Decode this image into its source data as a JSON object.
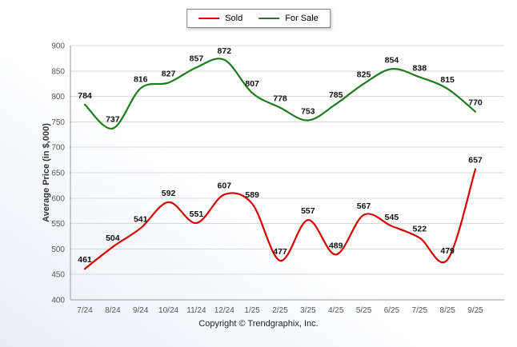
{
  "chart_data": {
    "type": "line",
    "title": "",
    "categories": [
      "7/24",
      "8/24",
      "9/24",
      "10/24",
      "11/24",
      "12/24",
      "1/25",
      "2/25",
      "3/25",
      "4/25",
      "5/25",
      "6/25",
      "7/25",
      "8/25",
      "9/25"
    ],
    "series": [
      {
        "name": "Sold",
        "color": "#d40000",
        "values": [
          461,
          504,
          541,
          592,
          551,
          607,
          589,
          477,
          557,
          489,
          567,
          545,
          522,
          479,
          657
        ]
      },
      {
        "name": "For Sale",
        "color": "#1e7b1e",
        "values": [
          784,
          737,
          816,
          827,
          857,
          872,
          807,
          778,
          753,
          785,
          825,
          854,
          838,
          815,
          770
        ]
      }
    ],
    "xlabel": "",
    "ylabel": "Average Price (in $,000)",
    "ylim": [
      400,
      900
    ],
    "ytick_step": 50,
    "grid": true,
    "legend_position": "top",
    "grid_color": "#d8d8d8",
    "axis_color": "#9a9a9a"
  },
  "footer": {
    "copyright": "Copyright © Trendgraphix, Inc."
  }
}
